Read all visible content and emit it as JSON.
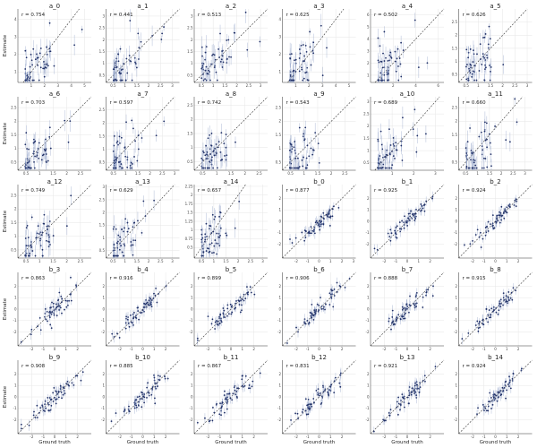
{
  "figure": {
    "xlabel": "Ground truth",
    "ylabel": "Estimate"
  },
  "chart_data": [
    {
      "type": "scatter",
      "title": "a_0",
      "r_label": "r = 0.754",
      "r": 0.754,
      "xlim": [
        0,
        5.5
      ],
      "ylim": [
        0.4,
        4.6
      ],
      "xticks": [
        1,
        2,
        3,
        4,
        5
      ],
      "yticks": [
        1,
        2,
        3,
        4
      ],
      "scheme": "a",
      "seed": 11
    },
    {
      "type": "scatter",
      "title": "a_1",
      "r_label": "r = 0.441",
      "r": 0.441,
      "xlim": [
        0.2,
        3.3
      ],
      "ylim": [
        0.2,
        3.3
      ],
      "xticks": [
        0.5,
        1.0,
        1.5,
        2.0,
        2.5,
        3.0
      ],
      "yticks": [
        0.5,
        1.0,
        1.5,
        2.0,
        2.5,
        3.0
      ],
      "scheme": "a",
      "seed": 12
    },
    {
      "type": "scatter",
      "title": "a_2",
      "r_label": "r = 0.513",
      "r": 0.513,
      "xlim": [
        0.2,
        3.3
      ],
      "ylim": [
        0.2,
        3.3
      ],
      "xticks": [
        0.5,
        1.0,
        1.5,
        2.0,
        2.5,
        3.0
      ],
      "yticks": [
        0.5,
        1.0,
        1.5,
        2.0,
        2.5,
        3.0
      ],
      "scheme": "a",
      "seed": 13
    },
    {
      "type": "scatter",
      "title": "a_3",
      "r_label": "r = 0.625",
      "r": 0.625,
      "xlim": [
        0,
        5.5
      ],
      "ylim": [
        0.4,
        4.6
      ],
      "xticks": [
        1,
        2,
        3,
        4,
        5
      ],
      "yticks": [
        1,
        2,
        3,
        4
      ],
      "scheme": "a",
      "seed": 14
    },
    {
      "type": "scatter",
      "title": "a_4",
      "r_label": "r = 0.502",
      "r": 0.502,
      "xlim": [
        0,
        6.5
      ],
      "ylim": [
        0.4,
        6.5
      ],
      "xticks": [
        2,
        4,
        6
      ],
      "yticks": [
        1,
        2,
        3,
        4,
        5,
        6
      ],
      "scheme": "a",
      "seed": 15
    },
    {
      "type": "scatter",
      "title": "a_5",
      "r_label": "r = 0.626",
      "r": 0.626,
      "xlim": [
        0.2,
        3.2
      ],
      "ylim": [
        0.2,
        3.0
      ],
      "xticks": [
        0.5,
        1.0,
        1.5,
        2.0,
        2.5,
        3.0
      ],
      "yticks": [
        0.5,
        1.0,
        1.5,
        2.0,
        2.5
      ],
      "scheme": "a",
      "seed": 16
    },
    {
      "type": "scatter",
      "title": "a_6",
      "r_label": "r = 0.703",
      "r": 0.703,
      "xlim": [
        0.2,
        2.9
      ],
      "ylim": [
        0.2,
        2.9
      ],
      "xticks": [
        0.5,
        1.0,
        1.5,
        2.0,
        2.5
      ],
      "yticks": [
        0.5,
        1.0,
        1.5,
        2.0,
        2.5
      ],
      "scheme": "a",
      "seed": 21
    },
    {
      "type": "scatter",
      "title": "a_7",
      "r_label": "r = 0.597",
      "r": 0.597,
      "xlim": [
        0.2,
        3.2
      ],
      "ylim": [
        0.2,
        3.0
      ],
      "xticks": [
        0.5,
        1.0,
        1.5,
        2.0,
        2.5,
        3.0
      ],
      "yticks": [
        0.5,
        1.0,
        1.5,
        2.0,
        2.5
      ],
      "scheme": "a",
      "seed": 22
    },
    {
      "type": "scatter",
      "title": "a_8",
      "r_label": "r = 0.742",
      "r": 0.742,
      "xlim": [
        0.2,
        2.8
      ],
      "ylim": [
        0.2,
        2.8
      ],
      "xticks": [
        0.5,
        1.0,
        1.5,
        2.0,
        2.5
      ],
      "yticks": [
        0.5,
        1.0,
        1.5,
        2.0,
        2.5
      ],
      "scheme": "a",
      "seed": 23
    },
    {
      "type": "scatter",
      "title": "a_9",
      "r_label": "r = 0.543",
      "r": 0.543,
      "xlim": [
        0.2,
        2.9
      ],
      "ylim": [
        0.2,
        2.9
      ],
      "xticks": [
        0.5,
        1.0,
        1.5,
        2.0,
        2.5
      ],
      "yticks": [
        0.5,
        1.0,
        1.5,
        2.0,
        2.5
      ],
      "scheme": "a",
      "seed": 24
    },
    {
      "type": "scatter",
      "title": "a_10",
      "r_label": "r = 0.689",
      "r": 0.689,
      "xlim": [
        0,
        3.4
      ],
      "ylim": [
        0.2,
        3.2
      ],
      "xticks": [
        1,
        2,
        3
      ],
      "yticks": [
        0.5,
        1.0,
        1.5,
        2.0,
        2.5,
        3.0
      ],
      "scheme": "a",
      "seed": 25
    },
    {
      "type": "scatter",
      "title": "a_11",
      "r_label": "r = 0.660",
      "r": 0.66,
      "xlim": [
        0.2,
        3.3
      ],
      "ylim": [
        0.2,
        2.9
      ],
      "xticks": [
        0.5,
        1.0,
        1.5,
        2.0,
        2.5,
        3.0
      ],
      "yticks": [
        0.5,
        1.0,
        1.5,
        2.0,
        2.5
      ],
      "scheme": "a",
      "seed": 26
    },
    {
      "type": "scatter",
      "title": "a_12",
      "r_label": "r = 0.749",
      "r": 0.749,
      "xlim": [
        0.2,
        2.9
      ],
      "ylim": [
        0.2,
        2.9
      ],
      "xticks": [
        0.5,
        1.0,
        1.5,
        2.0,
        2.5
      ],
      "yticks": [
        0.5,
        1.0,
        1.5,
        2.0,
        2.5
      ],
      "scheme": "a",
      "seed": 31
    },
    {
      "type": "scatter",
      "title": "a_13",
      "r_label": "r = 0.629",
      "r": 0.629,
      "xlim": [
        0.2,
        3.3
      ],
      "ylim": [
        0.2,
        3.1
      ],
      "xticks": [
        0.5,
        1.0,
        1.5,
        2.0,
        2.5,
        3.0
      ],
      "yticks": [
        0.5,
        1.0,
        1.5,
        2.0,
        2.5,
        3.0
      ],
      "scheme": "a",
      "seed": 32
    },
    {
      "type": "scatter",
      "title": "a_14",
      "r_label": "r = 0.657",
      "r": 0.657,
      "xlim": [
        0.2,
        3.2
      ],
      "ylim": [
        0.2,
        2.3
      ],
      "xticks": [
        0.5,
        1.0,
        1.5,
        2.0,
        2.5,
        3.0
      ],
      "yticks": [
        0.5,
        0.75,
        1.0,
        1.25,
        1.5,
        1.75,
        2.0,
        2.25
      ],
      "scheme": "a",
      "seed": 33
    },
    {
      "type": "scatter",
      "title": "b_0",
      "r_label": "r = 0.877",
      "r": 0.877,
      "xlim": [
        -3.2,
        3.2
      ],
      "ylim": [
        -3.2,
        3.2
      ],
      "xticks": [
        -2,
        -1,
        0,
        1,
        2,
        3
      ],
      "yticks": [
        -2,
        -1,
        0,
        1,
        2
      ],
      "scheme": "b",
      "seed": 41
    },
    {
      "type": "scatter",
      "title": "b_1",
      "r_label": "r = 0.925",
      "r": 0.925,
      "xlim": [
        -3.2,
        3.2
      ],
      "ylim": [
        -3.2,
        3.2
      ],
      "xticks": [
        -2,
        -1,
        0,
        1,
        2
      ],
      "yticks": [
        -2,
        -1,
        0,
        1,
        2
      ],
      "scheme": "b",
      "seed": 42
    },
    {
      "type": "scatter",
      "title": "b_2",
      "r_label": "r = 0.924",
      "r": 0.924,
      "xlim": [
        -3.2,
        3.2
      ],
      "ylim": [
        -3.2,
        3.2
      ],
      "xticks": [
        -2,
        -1,
        0,
        1,
        2
      ],
      "yticks": [
        -2,
        -1,
        0,
        1,
        2
      ],
      "scheme": "b",
      "seed": 43
    },
    {
      "type": "scatter",
      "title": "b_3",
      "r_label": "r = 0.863",
      "r": 0.863,
      "xlim": [
        -3.2,
        3.2
      ],
      "ylim": [
        -3.2,
        3.2
      ],
      "xticks": [
        -2,
        -1,
        0,
        1,
        2
      ],
      "yticks": [
        -2,
        -1,
        0,
        1,
        2
      ],
      "scheme": "b",
      "seed": 44
    },
    {
      "type": "scatter",
      "title": "b_4",
      "r_label": "r = 0.916",
      "r": 0.916,
      "xlim": [
        -3.2,
        3.2
      ],
      "ylim": [
        -3.2,
        3.2
      ],
      "xticks": [
        -2,
        -1,
        0,
        1,
        2
      ],
      "yticks": [
        -2,
        -1,
        0,
        1,
        2
      ],
      "scheme": "b",
      "seed": 45
    },
    {
      "type": "scatter",
      "title": "b_5",
      "r_label": "r = 0.899",
      "r": 0.899,
      "xlim": [
        -3.2,
        3.2
      ],
      "ylim": [
        -3.2,
        3.2
      ],
      "xticks": [
        -2,
        -1,
        0,
        1,
        2
      ],
      "yticks": [
        -2,
        -1,
        0,
        1,
        2
      ],
      "scheme": "b",
      "seed": 46
    },
    {
      "type": "scatter",
      "title": "b_6",
      "r_label": "r = 0.906",
      "r": 0.906,
      "xlim": [
        -3.2,
        3.2
      ],
      "ylim": [
        -3.2,
        3.2
      ],
      "xticks": [
        -2,
        -1,
        0,
        1,
        2
      ],
      "yticks": [
        -2,
        -1,
        0,
        1,
        2
      ],
      "scheme": "b",
      "seed": 51
    },
    {
      "type": "scatter",
      "title": "b_7",
      "r_label": "r = 0.888",
      "r": 0.888,
      "xlim": [
        -3.2,
        3.2
      ],
      "ylim": [
        -3.2,
        3.2
      ],
      "xticks": [
        -2,
        -1,
        0,
        1,
        2
      ],
      "yticks": [
        -2,
        -1,
        0,
        1,
        2
      ],
      "scheme": "b",
      "seed": 52
    },
    {
      "type": "scatter",
      "title": "b_8",
      "r_label": "r = 0.915",
      "r": 0.915,
      "xlim": [
        -3.2,
        3.2
      ],
      "ylim": [
        -3.2,
        3.2
      ],
      "xticks": [
        -2,
        -1,
        0,
        1,
        2
      ],
      "yticks": [
        -2,
        -1,
        0,
        1,
        2
      ],
      "scheme": "b",
      "seed": 53
    },
    {
      "type": "scatter",
      "title": "b_9",
      "r_label": "r = 0.908",
      "r": 0.908,
      "xlim": [
        -3.2,
        3.2
      ],
      "ylim": [
        -3.2,
        3.2
      ],
      "xticks": [
        -2,
        -1,
        0,
        1,
        2
      ],
      "yticks": [
        -2,
        -1,
        0,
        1,
        2
      ],
      "scheme": "b",
      "seed": 54
    },
    {
      "type": "scatter",
      "title": "b_10",
      "r_label": "r = 0.885",
      "r": 0.885,
      "xlim": [
        -3.2,
        3.2
      ],
      "ylim": [
        -3.2,
        3.2
      ],
      "xticks": [
        -2,
        -1,
        0,
        1,
        2
      ],
      "yticks": [
        -2,
        -1,
        0,
        1,
        2
      ],
      "scheme": "b",
      "seed": 55
    },
    {
      "type": "scatter",
      "title": "b_11",
      "r_label": "r = 0.867",
      "r": 0.867,
      "xlim": [
        -3.2,
        3.2
      ],
      "ylim": [
        -3.2,
        3.2
      ],
      "xticks": [
        -2,
        -1,
        0,
        1,
        2
      ],
      "yticks": [
        -2,
        -1,
        0,
        1,
        2
      ],
      "scheme": "b",
      "seed": 56
    },
    {
      "type": "scatter",
      "title": "b_12",
      "r_label": "r = 0.831",
      "r": 0.831,
      "xlim": [
        -3.2,
        3.2
      ],
      "ylim": [
        -3.2,
        3.2
      ],
      "xticks": [
        -2,
        -1,
        0,
        1,
        2
      ],
      "yticks": [
        -2,
        -1,
        0,
        1,
        2
      ],
      "scheme": "b",
      "seed": 61
    },
    {
      "type": "scatter",
      "title": "b_13",
      "r_label": "r = 0.921",
      "r": 0.921,
      "xlim": [
        -3.2,
        3.2
      ],
      "ylim": [
        -3.2,
        3.2
      ],
      "xticks": [
        -2,
        -1,
        0,
        1,
        2
      ],
      "yticks": [
        -2,
        -1,
        0,
        1,
        2
      ],
      "scheme": "b",
      "seed": 62
    },
    {
      "type": "scatter",
      "title": "b_14",
      "r_label": "r = 0.924",
      "r": 0.924,
      "xlim": [
        -3.2,
        3.2
      ],
      "ylim": [
        -3.2,
        3.2
      ],
      "xticks": [
        -2,
        -1,
        0,
        1,
        2
      ],
      "yticks": [
        -2,
        -1,
        0,
        1,
        2
      ],
      "scheme": "b",
      "seed": 63
    }
  ]
}
